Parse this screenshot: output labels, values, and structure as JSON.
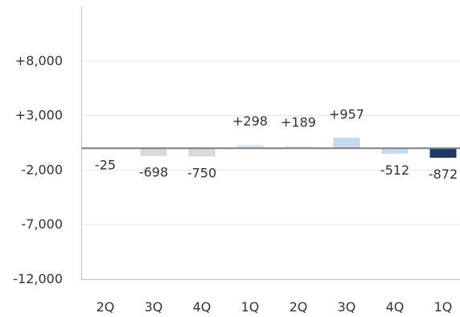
{
  "chart_data": {
    "type": "bar",
    "title": "",
    "xlabel": "",
    "ylabel": "",
    "ylim": [
      -12000,
      13000
    ],
    "yticks": [
      {
        "value": 8000,
        "label": "+8,000"
      },
      {
        "value": 3000,
        "label": "+3,000"
      },
      {
        "value": -2000,
        "label": "-2,000"
      },
      {
        "value": -7000,
        "label": "-7,000"
      },
      {
        "value": -12000,
        "label": "-12,000"
      }
    ],
    "grid": true,
    "legend": "none",
    "categories": [
      "2Q",
      "3Q",
      "4Q",
      "1Q",
      "2Q",
      "3Q",
      "4Q",
      "1Q"
    ],
    "values": [
      -25,
      -698,
      -750,
      298,
      189,
      957,
      -512,
      -872
    ],
    "data_labels": [
      "-25",
      "-698",
      "-750",
      "+298",
      "+189",
      "+957",
      "-512",
      "-872"
    ],
    "bar_colors": [
      "#d9d9d9",
      "#d9d9d9",
      "#d9d9d9",
      "#dbe7f4",
      "#dbe7f4",
      "#c6d9ee",
      "#c6d9ee",
      "#1f3864"
    ]
  }
}
